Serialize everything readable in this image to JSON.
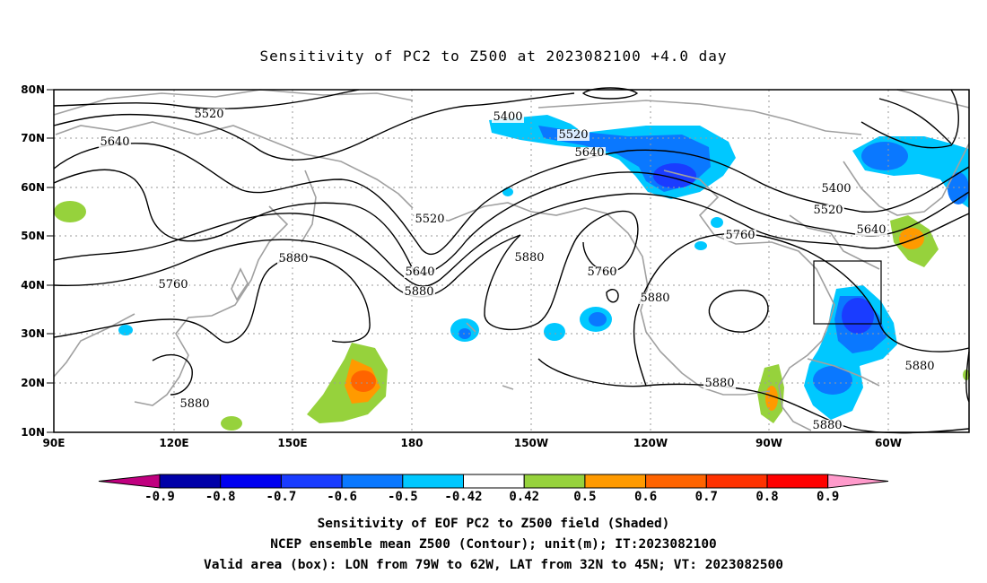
{
  "title": "Sensitivity of PC2 to Z500 at 2023082100 +4.0 day",
  "lon_labels": [
    "90E",
    "120E",
    "150E",
    "180",
    "150W",
    "120W",
    "90W",
    "60W"
  ],
  "lat_labels": [
    "80N",
    "70N",
    "60N",
    "50N",
    "40N",
    "30N",
    "20N",
    "10N"
  ],
  "contour_labels": [
    "5520",
    "5400",
    "5520",
    "5640",
    "5640",
    "5520",
    "5400",
    "5520",
    "5640",
    "5760",
    "5880",
    "5880",
    "5640",
    "5760",
    "5760",
    "5880",
    "5880",
    "5880",
    "5880",
    "5880",
    "5880"
  ],
  "colorbar": {
    "labels": [
      "-0.9",
      "-0.8",
      "-0.7",
      "-0.6",
      "-0.5",
      "-0.42",
      "0.42",
      "0.5",
      "0.6",
      "0.7",
      "0.8",
      "0.9"
    ],
    "colors": [
      "#c0007f",
      "#0000a8",
      "#0000f0",
      "#1a3cff",
      "#0a78ff",
      "#00c8ff",
      "#ffffff",
      "#96d23c",
      "#ff9a00",
      "#ff6400",
      "#ff3200",
      "#ff0000",
      "#ff9acb"
    ]
  },
  "valid_box": {
    "lon_from": "79W",
    "lon_to": "62W",
    "lat_from": "32N",
    "lat_to": "45N"
  },
  "notes": [
    "Sensitivity of EOF PC2 to Z500 field (Shaded)",
    "NCEP ensemble mean Z500 (Contour); unit(m); IT:2023082100",
    "Valid area (box): LON from 79W to 62W, LAT from 32N to 45N; VT: 2023082500"
  ]
}
